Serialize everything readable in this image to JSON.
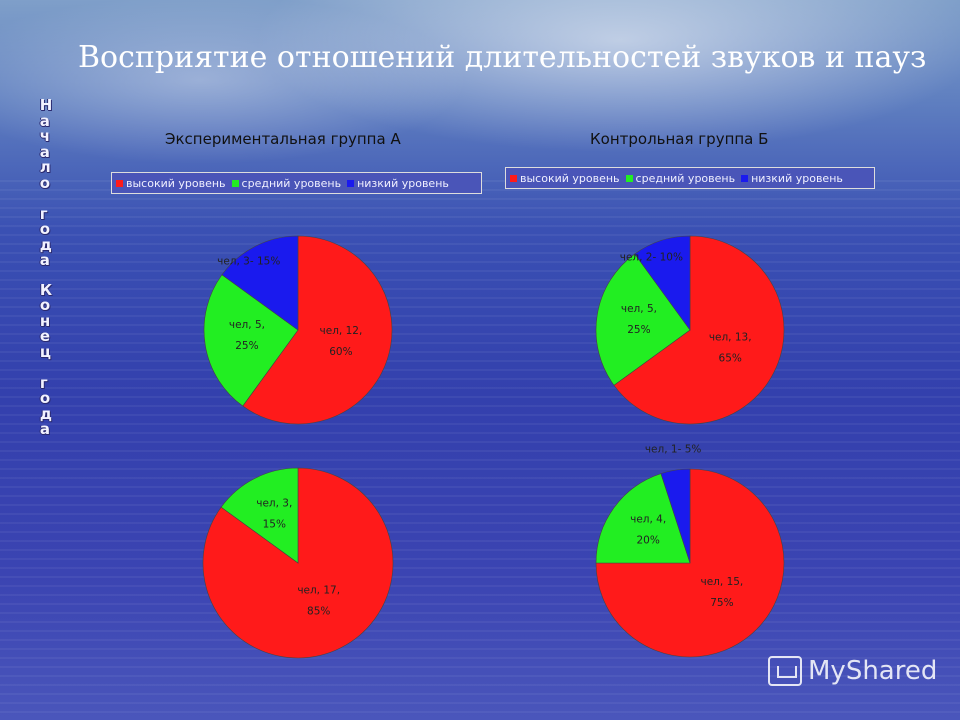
{
  "title": "Восприятие отношений длительностей звуков и пауз",
  "sidebar": {
    "top_text": "Начало года",
    "bottom_text": "Конец года"
  },
  "groups": [
    {
      "title": "Экспериментальная группа А"
    },
    {
      "title": "Контрольная группа Б"
    }
  ],
  "legend": [
    {
      "label": "высокий уровень",
      "color": "#ff1a1a"
    },
    {
      "label": "средний уровень",
      "color": "#22ee22"
    },
    {
      "label": "низкий уровень",
      "color": "#1a1aee"
    }
  ],
  "chart_data": [
    {
      "type": "pie",
      "title": "Экспериментальная группа А",
      "categories": [
        "высокий уровень",
        "средний уровень",
        "низкий уровень"
      ],
      "values": [
        12,
        5,
        3
      ],
      "labels": [
        [
          "чел, 12,",
          "60%"
        ],
        [
          "чел, 5,",
          "25%"
        ],
        [
          "чел, 3- 15%"
        ]
      ]
    },
    {
      "type": "pie",
      "title": "Контрольная группа Б",
      "categories": [
        "высокий уровень",
        "средний уровень",
        "низкий уровень"
      ],
      "values": [
        13,
        5,
        2
      ],
      "labels": [
        [
          "чел, 13,",
          "65%"
        ],
        [
          "чел, 5,",
          "25%"
        ],
        [
          "чел, 2- 10%"
        ]
      ]
    },
    {
      "type": "pie",
      "categories": [
        "высокий уровень",
        "средний уровень"
      ],
      "values": [
        17,
        3
      ],
      "labels": [
        [
          "чел, 17,",
          "85%"
        ],
        [
          "чел, 3,",
          "15%"
        ]
      ]
    },
    {
      "type": "pie",
      "categories": [
        "высокий уровень",
        "средний уровень",
        "низкий уровень"
      ],
      "values": [
        15,
        4,
        1
      ],
      "labels": [
        [
          "чел, 15,",
          "75%"
        ],
        [
          "чел, 4,",
          "20%"
        ],
        [
          "чел, 1- 5%"
        ]
      ]
    }
  ],
  "watermark": "MyShared"
}
